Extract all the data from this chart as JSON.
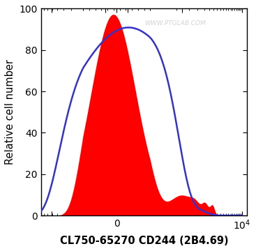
{
  "ylabel": "Relative cell number",
  "xlabel": "CL750-65270 CD244 (2B4.69)",
  "watermark": "WWW.PTGLAB.COM",
  "ylim": [
    0,
    100
  ],
  "fill_color": "#FF0000",
  "line_color": "#3333CC",
  "background_color": "#FFFFFF",
  "tick_label_fontsize": 10,
  "xlabel_fontsize": 10.5,
  "ylabel_fontsize": 10.5,
  "linthresh": 300,
  "linscale": 0.5
}
